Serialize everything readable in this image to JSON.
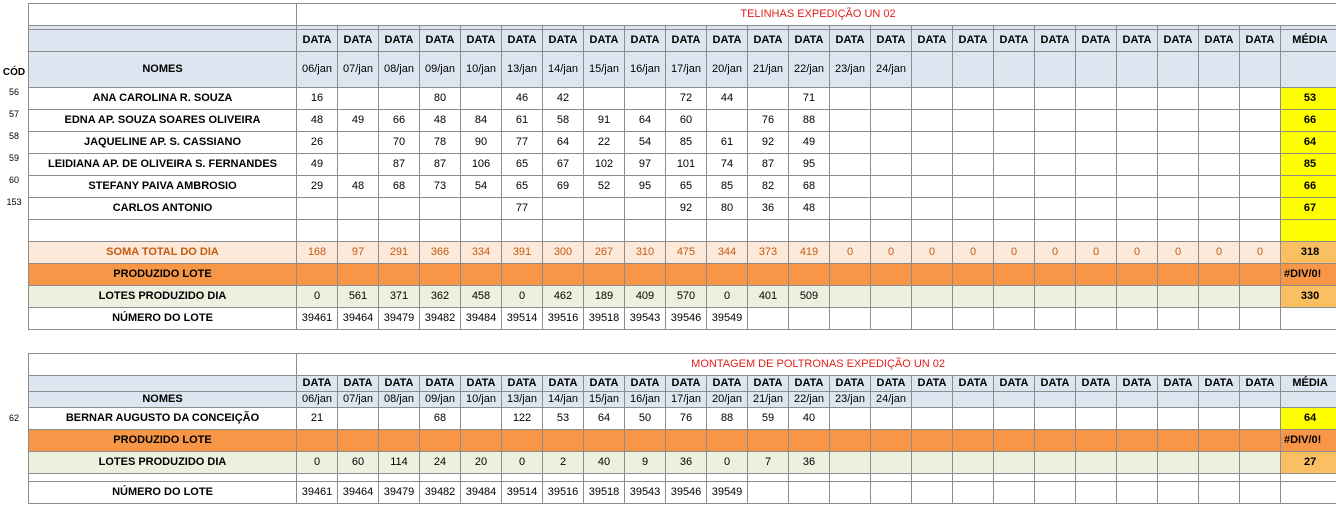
{
  "dates": [
    "06/jan",
    "07/jan",
    "08/jan",
    "09/jan",
    "10/jan",
    "13/jan",
    "14/jan",
    "15/jan",
    "16/jan",
    "17/jan",
    "20/jan",
    "21/jan",
    "22/jan",
    "23/jan",
    "24/jan",
    "",
    "",
    "",
    "",
    "",
    "",
    "",
    "",
    ""
  ],
  "data_label": "DATA",
  "media_label": "MÉDIA",
  "nomes_label": "NOMES",
  "cod_label": "CÓD",
  "table1": {
    "title": "TELINHAS EXPEDIÇÃO UN 02",
    "rows": [
      {
        "code": "56",
        "name": "ANA CAROLINA R. SOUZA",
        "values": [
          "16",
          "",
          "",
          "80",
          "",
          "46",
          "42",
          "",
          "",
          "72",
          "44",
          "",
          "71",
          "",
          "",
          "",
          "",
          "",
          "",
          "",
          "",
          "",
          "",
          ""
        ],
        "media": "53"
      },
      {
        "code": "57",
        "name": "EDNA AP. SOUZA SOARES OLIVEIRA",
        "values": [
          "48",
          "49",
          "66",
          "48",
          "84",
          "61",
          "58",
          "91",
          "64",
          "60",
          "",
          "76",
          "88",
          "",
          "",
          "",
          "",
          "",
          "",
          "",
          "",
          "",
          "",
          ""
        ],
        "media": "66"
      },
      {
        "code": "58",
        "name": "JAQUELINE AP.  S. CASSIANO",
        "values": [
          "26",
          "",
          "70",
          "78",
          "90",
          "77",
          "64",
          "22",
          "54",
          "85",
          "61",
          "92",
          "49",
          "",
          "",
          "",
          "",
          "",
          "",
          "",
          "",
          "",
          "",
          ""
        ],
        "media": "64"
      },
      {
        "code": "59",
        "name": "LEIDIANA AP. DE OLIVEIRA S. FERNANDES",
        "values": [
          "49",
          "",
          "87",
          "87",
          "106",
          "65",
          "67",
          "102",
          "97",
          "101",
          "74",
          "87",
          "95",
          "",
          "",
          "",
          "",
          "",
          "",
          "",
          "",
          "",
          "",
          ""
        ],
        "media": "85"
      },
      {
        "code": "60",
        "name": "STEFANY PAIVA AMBROSIO",
        "values": [
          "29",
          "48",
          "68",
          "73",
          "54",
          "65",
          "69",
          "52",
          "95",
          "65",
          "85",
          "82",
          "68",
          "",
          "",
          "",
          "",
          "",
          "",
          "",
          "",
          "",
          "",
          ""
        ],
        "media": "66"
      },
      {
        "code": "153",
        "name": "CARLOS ANTONIO",
        "values": [
          "",
          "",
          "",
          "",
          "",
          "77",
          "",
          "",
          "",
          "92",
          "80",
          "36",
          "48",
          "",
          "",
          "",
          "",
          "",
          "",
          "",
          "",
          "",
          "",
          ""
        ],
        "media": "67"
      }
    ],
    "soma": {
      "label": "SOMA TOTAL DO DIA",
      "values": [
        "168",
        "97",
        "291",
        "366",
        "334",
        "391",
        "300",
        "267",
        "310",
        "475",
        "344",
        "373",
        "419",
        "0",
        "0",
        "0",
        "0",
        "0",
        "0",
        "0",
        "0",
        "0",
        "0",
        "0"
      ],
      "media": "318"
    },
    "produzido": {
      "label": "PRODUZIDO LOTE",
      "media": "#DIV/0!"
    },
    "lotes": {
      "label": "LOTES PRODUZIDO DIA",
      "values": [
        "0",
        "561",
        "371",
        "362",
        "458",
        "0",
        "462",
        "189",
        "409",
        "570",
        "0",
        "401",
        "509",
        "",
        "",
        "",
        "",
        "",
        "",
        "",
        "",
        "",
        "",
        ""
      ],
      "media": "330"
    },
    "numero": {
      "label": "NÚMERO DO LOTE",
      "values": [
        "39461",
        "39464",
        "39479",
        "39482",
        "39484",
        "39514",
        "39516",
        "39518",
        "39543",
        "39546",
        "39549",
        "",
        "",
        "",
        "",
        "",
        "",
        "",
        "",
        "",
        "",
        "",
        "",
        ""
      ]
    }
  },
  "table2": {
    "title": "MONTAGEM DE POLTRONAS EXPEDIÇÃO UN 02",
    "rows": [
      {
        "code": "62",
        "name": "BERNAR AUGUSTO DA CONCEIÇÃO",
        "values": [
          "21",
          "",
          "",
          "68",
          "",
          "122",
          "53",
          "64",
          "50",
          "76",
          "88",
          "59",
          "40",
          "",
          "",
          "",
          "",
          "",
          "",
          "",
          "",
          "",
          "",
          ""
        ],
        "media": "64"
      }
    ],
    "produzido": {
      "label": "PRODUZIDO LOTE",
      "media": "#DIV/0!"
    },
    "lotes": {
      "label": "LOTES PRODUZIDO DIA",
      "values": [
        "0",
        "60",
        "114",
        "24",
        "20",
        "0",
        "2",
        "40",
        "9",
        "36",
        "0",
        "7",
        "36",
        "",
        "",
        "",
        "",
        "",
        "",
        "",
        "",
        "",
        "",
        ""
      ],
      "media": "27"
    },
    "numero": {
      "label": "NÚMERO DO LOTE",
      "values": [
        "39461",
        "39464",
        "39479",
        "39482",
        "39484",
        "39514",
        "39516",
        "39518",
        "39543",
        "39546",
        "39549",
        "",
        "",
        "",
        "",
        "",
        "",
        "",
        "",
        "",
        "",
        "",
        "",
        ""
      ]
    }
  }
}
